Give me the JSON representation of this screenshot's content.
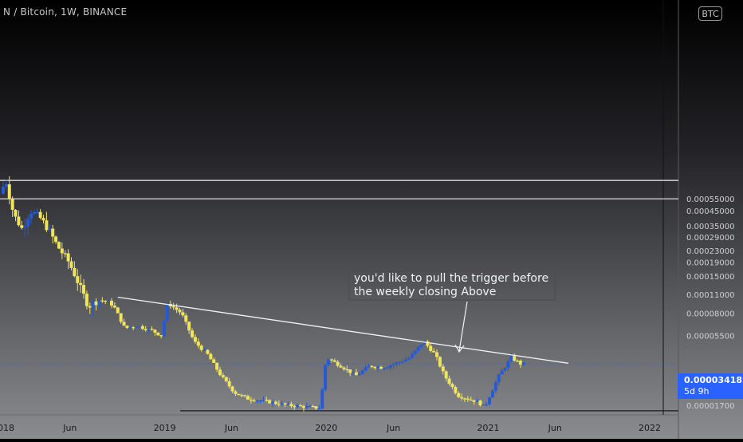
{
  "header": {
    "title": "N / Bitcoin, 1W, BINANCE",
    "settings_label": "BTC"
  },
  "colors": {
    "bull": "#2659d6",
    "bear": "#f0e45a",
    "line": "#f2f2f2",
    "price_tag": "#2962ff"
  },
  "annotation": {
    "line1": "you'd like to pull the trigger before",
    "line2": "the weekly closing Above"
  },
  "price_tag": {
    "price": "0.00003418",
    "countdown": "5d 9h"
  },
  "chart_data": {
    "type": "candlestick",
    "title": "N / Bitcoin, 1W, BINANCE",
    "scale": "log",
    "y_ticks": [
      "0.00055000",
      "0.00045000",
      "0.00035000",
      "0.00029000",
      "0.00023000",
      "0.00019000",
      "0.00015000",
      "0.00011000",
      "0.00008000",
      "0.00005500",
      "0.00001700"
    ],
    "x_ticks": [
      "2018",
      "Jun",
      "2019",
      "Jun",
      "2020",
      "Jun",
      "2021",
      "Jun",
      "2022"
    ],
    "last_price": 3.418e-05,
    "horizontal_levels": [
      0.00075,
      0.00055
    ],
    "trendline": [
      {
        "date": "2018-09-17",
        "price": 0.000105
      },
      {
        "date": "2021-07-01",
        "price": 3.45e-05
      }
    ],
    "base_line": 1.55e-05,
    "anchors": [
      [
        "2018-01-01",
        0.0006
      ],
      [
        "2018-01-14",
        0.00075
      ],
      [
        "2018-02-01",
        0.00042
      ],
      [
        "2018-02-20",
        0.00033
      ],
      [
        "2018-03-10",
        0.00045
      ],
      [
        "2018-04-01",
        0.0004
      ],
      [
        "2018-04-20",
        0.00033
      ],
      [
        "2018-05-10",
        0.00025
      ],
      [
        "2018-06-05",
        0.00019
      ],
      [
        "2018-06-20",
        0.00015
      ],
      [
        "2018-07-05",
        0.000115
      ],
      [
        "2018-07-20",
        9e-05
      ],
      [
        "2018-08-10",
        0.0001
      ],
      [
        "2018-09-01",
        9.8e-05
      ],
      [
        "2018-09-15",
        9e-05
      ],
      [
        "2018-10-10",
        6.2e-05
      ],
      [
        "2018-11-05",
        6.5e-05
      ],
      [
        "2018-12-10",
        6e-05
      ],
      [
        "2018-12-31",
        5.5e-05
      ],
      [
        "2019-01-15",
        9.5e-05
      ],
      [
        "2019-02-15",
        8e-05
      ],
      [
        "2019-03-15",
        5e-05
      ],
      [
        "2019-04-15",
        4e-05
      ],
      [
        "2019-05-15",
        2.8e-05
      ],
      [
        "2019-06-15",
        2.1e-05
      ],
      [
        "2019-07-15",
        1.9e-05
      ],
      [
        "2019-09-01",
        1.8e-05
      ],
      [
        "2019-10-15",
        1.7e-05
      ],
      [
        "2019-12-25",
        1.62e-05
      ],
      [
        "2020-01-08",
        3.8e-05
      ],
      [
        "2020-02-10",
        3.3e-05
      ],
      [
        "2020-03-15",
        2.8e-05
      ],
      [
        "2020-04-15",
        3.3e-05
      ],
      [
        "2020-05-15",
        3.2e-05
      ],
      [
        "2020-06-20",
        3.5e-05
      ],
      [
        "2020-07-15",
        3.8e-05
      ],
      [
        "2020-08-15",
        5e-05
      ],
      [
        "2020-09-10",
        4e-05
      ],
      [
        "2020-10-01",
        2.8e-05
      ],
      [
        "2020-11-01",
        2e-05
      ],
      [
        "2020-12-15",
        1.8e-05
      ],
      [
        "2020-12-31",
        1.65e-05
      ],
      [
        "2021-02-01",
        2.8e-05
      ],
      [
        "2021-03-01",
        3.8e-05
      ],
      [
        "2021-03-22",
        3.42e-05
      ]
    ]
  }
}
